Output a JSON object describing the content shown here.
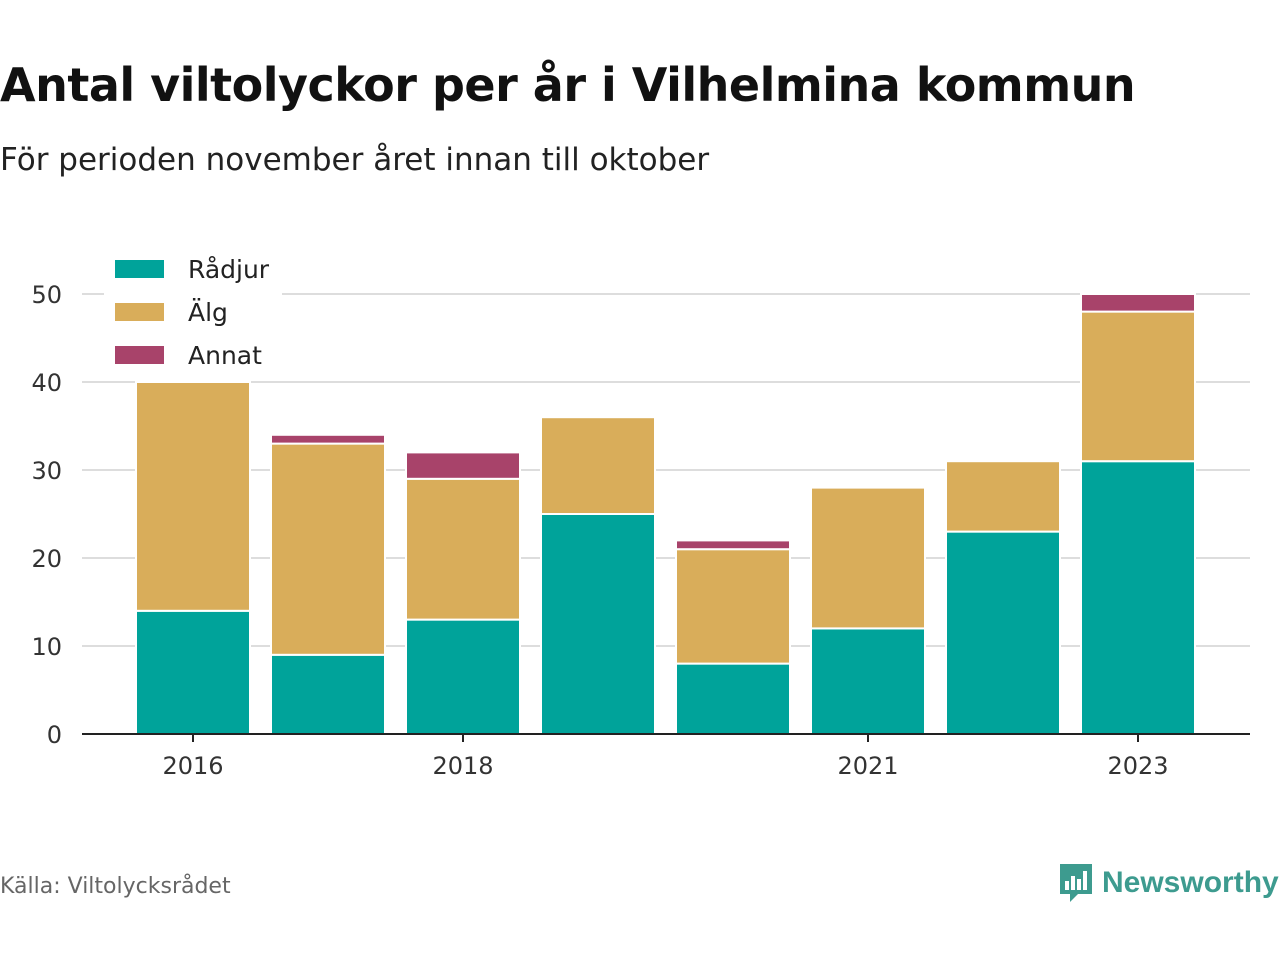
{
  "header": {
    "title": "Antal viltolyckor per år i Vilhelmina kommun",
    "subtitle": "För perioden november året innan till oktober"
  },
  "footer": {
    "source": "Källa: Viltolycksrådet",
    "brand": "Newsworthy",
    "brand_icon": "newsworthy-logo-icon"
  },
  "colors": {
    "Rådjur": "#00a39a",
    "Älg": "#d9ad5a",
    "Annat": "#a8436a",
    "brand": "#3d9b8f"
  },
  "chart_data": {
    "type": "bar",
    "stacked": true,
    "categories": [
      "2016",
      "2017",
      "2018",
      "2019",
      "2020",
      "2021",
      "2022",
      "2023"
    ],
    "tick_labels": [
      "2016",
      "",
      "2018",
      "",
      "",
      "2021",
      "",
      "2023"
    ],
    "series": [
      {
        "name": "Rådjur",
        "values": [
          14,
          9,
          13,
          25,
          8,
          12,
          23,
          31
        ]
      },
      {
        "name": "Älg",
        "values": [
          26,
          24,
          16,
          11,
          13,
          16,
          8,
          17
        ]
      },
      {
        "name": "Annat",
        "values": [
          0,
          1,
          3,
          0,
          1,
          0,
          0,
          2
        ]
      }
    ],
    "ylim": [
      0,
      50
    ],
    "yticks": [
      0,
      10,
      20,
      30,
      40,
      50
    ],
    "grid": true,
    "legend_position": "top-left"
  }
}
